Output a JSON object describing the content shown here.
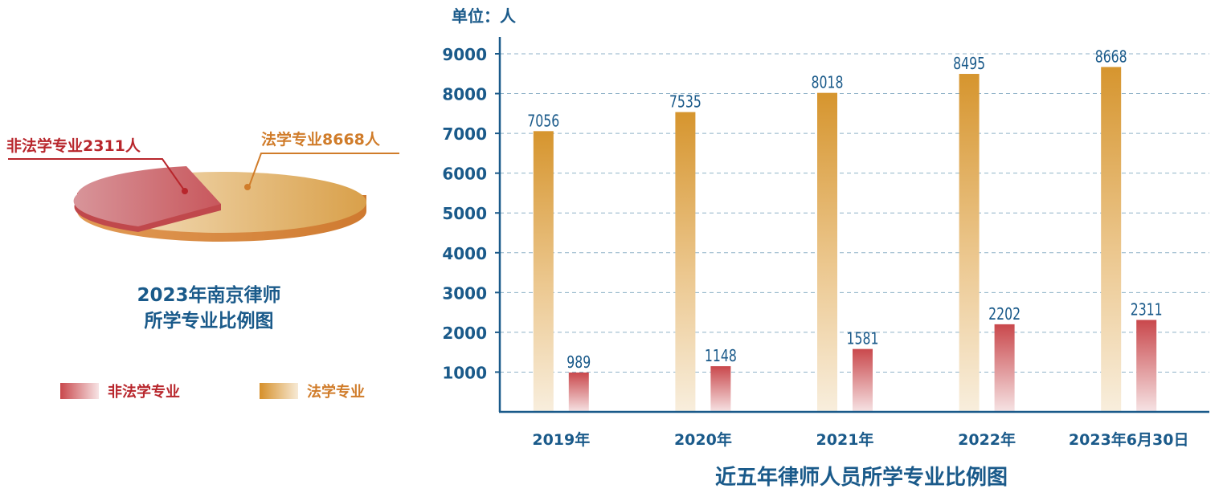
{
  "colors": {
    "title": "#1a5a8a",
    "axis": "#1a5a8a",
    "law": "#d6902a",
    "law_light": "#f6e9d6",
    "nonlaw": "#c9484c",
    "nonlaw_light": "#f5dfe0",
    "nonlaw_label": "#b8262c",
    "law_label": "#d07c2a",
    "grid": "#8fb2c8"
  },
  "pie": {
    "title_line1": "2023年南京律师",
    "title_line2": "所学专业比例图",
    "nonlaw_callout": "非法学专业2311人",
    "law_callout": "法学专业8668人",
    "legend": [
      {
        "label": "非法学专业",
        "key": "nonlaw"
      },
      {
        "label": "法学专业",
        "key": "law"
      }
    ]
  },
  "chart_data": [
    {
      "type": "pie",
      "title": "2023年南京律师所学专业比例图",
      "labels": [
        "非法学专业",
        "法学专业"
      ],
      "values": [
        2311,
        8668
      ]
    },
    {
      "type": "bar",
      "title": "近五年律师人员所学专业比例图",
      "unit_label": "单位：人",
      "categories": [
        "2019年",
        "2020年",
        "2021年",
        "2022年",
        "2023年6月30日"
      ],
      "series": [
        {
          "name": "法学专业",
          "key": "law",
          "values": [
            7056,
            7535,
            8018,
            8495,
            8668
          ]
        },
        {
          "name": "非法学专业",
          "key": "nonlaw",
          "values": [
            989,
            1148,
            1581,
            2202,
            2311
          ]
        }
      ],
      "yticks": [
        1000,
        2000,
        3000,
        4000,
        5000,
        6000,
        7000,
        8000,
        9000
      ],
      "ylim": [
        0,
        9000
      ],
      "grid": true
    }
  ]
}
